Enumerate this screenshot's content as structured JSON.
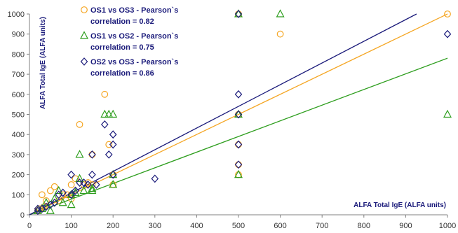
{
  "chart_data": {
    "type": "scatter",
    "title": "",
    "xlabel": "ALFA Total IgE (ALFA units)",
    "ylabel": "ALFA Total IgE (ALFA units)",
    "xlim": [
      0,
      1000
    ],
    "ylim": [
      0,
      1000
    ],
    "xticks": [
      0,
      100,
      200,
      300,
      400,
      500,
      600,
      700,
      800,
      900,
      1000
    ],
    "yticks": [
      0,
      100,
      200,
      300,
      400,
      500,
      600,
      700,
      800,
      900,
      1000
    ],
    "grid": false,
    "legend_position": "top-left",
    "series": [
      {
        "name": "OS1 vs OS3 - Pearson`s correlation = 0.82",
        "legend_lines": [
          "OS1 vs OS3 - Pearson`s",
          "correlation = 0.82"
        ],
        "marker": "circle",
        "color": "#f5a623",
        "trend": {
          "slope": 1.0,
          "intercept": 0
        },
        "points": [
          [
            20,
            20
          ],
          [
            25,
            30
          ],
          [
            30,
            100
          ],
          [
            35,
            40
          ],
          [
            40,
            70
          ],
          [
            50,
            120
          ],
          [
            60,
            140
          ],
          [
            70,
            70
          ],
          [
            80,
            100
          ],
          [
            90,
            100
          ],
          [
            100,
            150
          ],
          [
            100,
            80
          ],
          [
            100,
            100
          ],
          [
            110,
            180
          ],
          [
            120,
            450
          ],
          [
            130,
            150
          ],
          [
            140,
            160
          ],
          [
            150,
            300
          ],
          [
            150,
            150
          ],
          [
            180,
            600
          ],
          [
            190,
            350
          ],
          [
            200,
            200
          ],
          [
            200,
            150
          ],
          [
            500,
            200
          ],
          [
            500,
            1000
          ],
          [
            500,
            350
          ],
          [
            500,
            500
          ],
          [
            500,
            250
          ],
          [
            600,
            900
          ],
          [
            1000,
            1000
          ]
        ]
      },
      {
        "name": "OS1 vs OS2 - Pearson`s correlation = 0.75",
        "legend_lines": [
          "OS1 vs OS2 - Pearson`s",
          "correlation = 0.75"
        ],
        "marker": "triangle",
        "color": "#2e9e1e",
        "trend": {
          "slope": 0.78,
          "intercept": 0
        },
        "points": [
          [
            20,
            20
          ],
          [
            30,
            30
          ],
          [
            40,
            60
          ],
          [
            50,
            20
          ],
          [
            60,
            80
          ],
          [
            70,
            120
          ],
          [
            80,
            60
          ],
          [
            100,
            50
          ],
          [
            100,
            100
          ],
          [
            110,
            110
          ],
          [
            120,
            300
          ],
          [
            120,
            180
          ],
          [
            130,
            120
          ],
          [
            150,
            130
          ],
          [
            150,
            120
          ],
          [
            180,
            500
          ],
          [
            190,
            500
          ],
          [
            200,
            500
          ],
          [
            200,
            150
          ],
          [
            200,
            200
          ],
          [
            500,
            200
          ],
          [
            500,
            1000
          ],
          [
            500,
            500
          ],
          [
            600,
            1000
          ],
          [
            1000,
            500
          ]
        ]
      },
      {
        "name": "OS2 vs OS3 - Pearson`s correlation = 0.86",
        "legend_lines": [
          "OS2 vs OS3 - Pearson`s",
          "correlation = 0.86"
        ],
        "marker": "diamond",
        "color": "#1a1a7a",
        "trend": {
          "slope": 1.08,
          "intercept": 0
        },
        "points": [
          [
            20,
            20
          ],
          [
            20,
            30
          ],
          [
            30,
            30
          ],
          [
            40,
            40
          ],
          [
            50,
            50
          ],
          [
            60,
            60
          ],
          [
            70,
            100
          ],
          [
            80,
            110
          ],
          [
            100,
            200
          ],
          [
            100,
            100
          ],
          [
            110,
            120
          ],
          [
            120,
            160
          ],
          [
            130,
            160
          ],
          [
            140,
            150
          ],
          [
            150,
            300
          ],
          [
            150,
            200
          ],
          [
            160,
            150
          ],
          [
            180,
            450
          ],
          [
            190,
            300
          ],
          [
            200,
            400
          ],
          [
            200,
            350
          ],
          [
            200,
            200
          ],
          [
            300,
            180
          ],
          [
            500,
            600
          ],
          [
            500,
            1000
          ],
          [
            500,
            500
          ],
          [
            500,
            350
          ],
          [
            500,
            250
          ],
          [
            1000,
            900
          ]
        ]
      }
    ]
  }
}
